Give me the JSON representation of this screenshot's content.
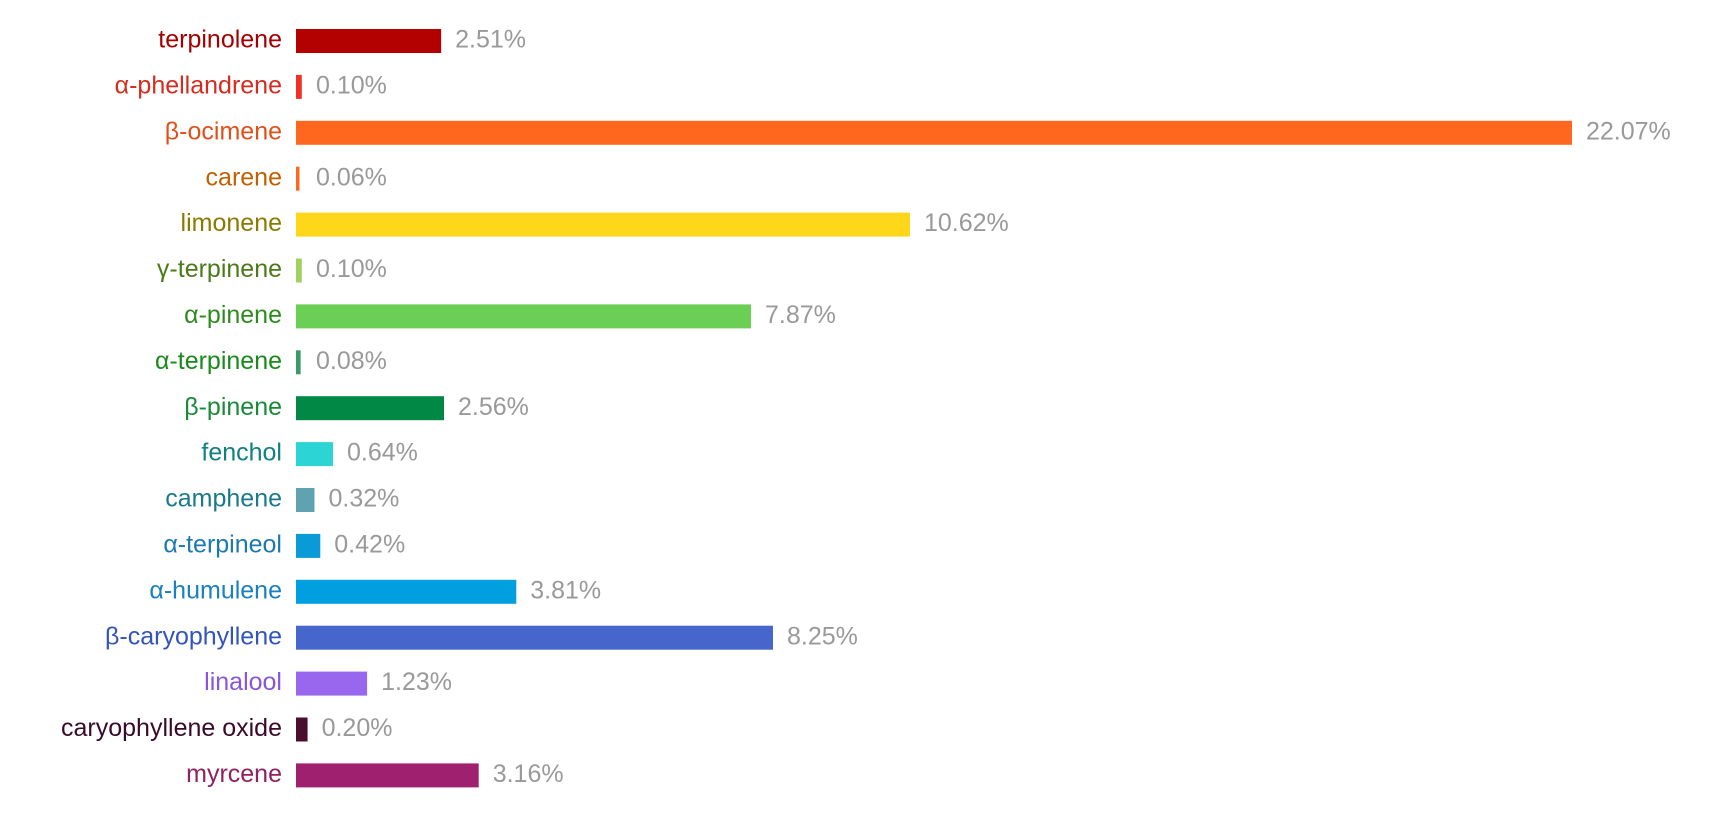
{
  "chart_data": {
    "type": "bar",
    "orientation": "horizontal",
    "categories": [
      "terpinolene",
      "α-phellandrene",
      "β-ocimene",
      "carene",
      "limonene",
      "γ-terpinene",
      "α-pinene",
      "α-terpinene",
      "β-pinene",
      "fenchol",
      "camphene",
      "α-terpineol",
      "α-humulene",
      "β-caryophyllene",
      "linalool",
      "caryophyllene oxide",
      "myrcene"
    ],
    "values": [
      2.51,
      0.1,
      22.07,
      0.06,
      10.62,
      0.1,
      7.87,
      0.08,
      2.56,
      0.64,
      0.32,
      0.42,
      3.81,
      8.25,
      1.23,
      0.2,
      3.16
    ],
    "value_labels": [
      "2.51%",
      "0.10%",
      "22.07%",
      "0.06%",
      "10.62%",
      "0.10%",
      "7.87%",
      "0.08%",
      "2.56%",
      "0.64%",
      "0.32%",
      "0.42%",
      "3.81%",
      "8.25%",
      "1.23%",
      "0.20%",
      "3.16%"
    ],
    "colors": [
      "#b30000",
      "#ee3124",
      "#ff671f",
      "#ff671f",
      "#ffd71a",
      "#a0d060",
      "#6acf54",
      "#3a9a6a",
      "#008844",
      "#2dd4d4",
      "#5fa3b0",
      "#0a9ad8",
      "#00a0e0",
      "#4666cc",
      "#9966ee",
      "#4a0f2e",
      "#a02070"
    ],
    "label_colors": [
      "#a50000",
      "#d62b1f",
      "#e0501a",
      "#c06000",
      "#8a7a00",
      "#4a7a1a",
      "#2e8b1e",
      "#1a8a1a",
      "#1a8a3a",
      "#108080",
      "#1a7a8a",
      "#1a7ab0",
      "#1a80c0",
      "#3355bb",
      "#8855dd",
      "#3a0a2a",
      "#902060"
    ]
  }
}
